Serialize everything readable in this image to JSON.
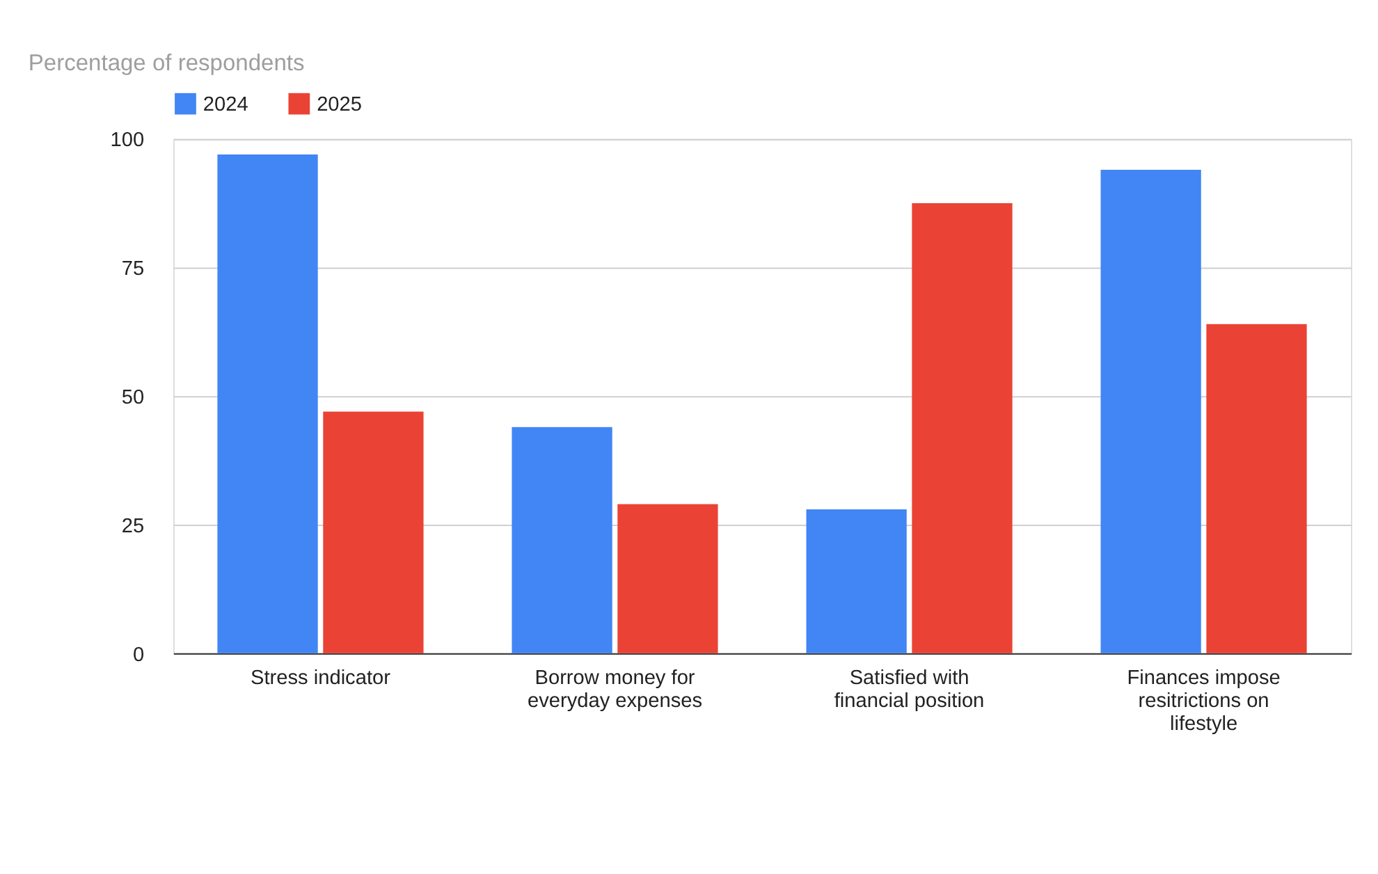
{
  "chart_data": {
    "type": "bar",
    "title": "Percentage of respondents",
    "categories": [
      "Stress indicator",
      "Borrow money for everyday expenses",
      "Satisfied with financial position",
      "Finances impose resitrictions on lifestyle"
    ],
    "series": [
      {
        "name": "2024",
        "color": "#4285f4",
        "values": [
          97,
          44,
          28,
          94
        ]
      },
      {
        "name": "2025",
        "color": "#ea4335",
        "values": [
          47,
          29,
          87.5,
          64
        ]
      }
    ],
    "ylim": [
      0,
      100
    ],
    "yticks": [
      0,
      25,
      50,
      75,
      100
    ],
    "grid": "y",
    "legend": "top"
  }
}
